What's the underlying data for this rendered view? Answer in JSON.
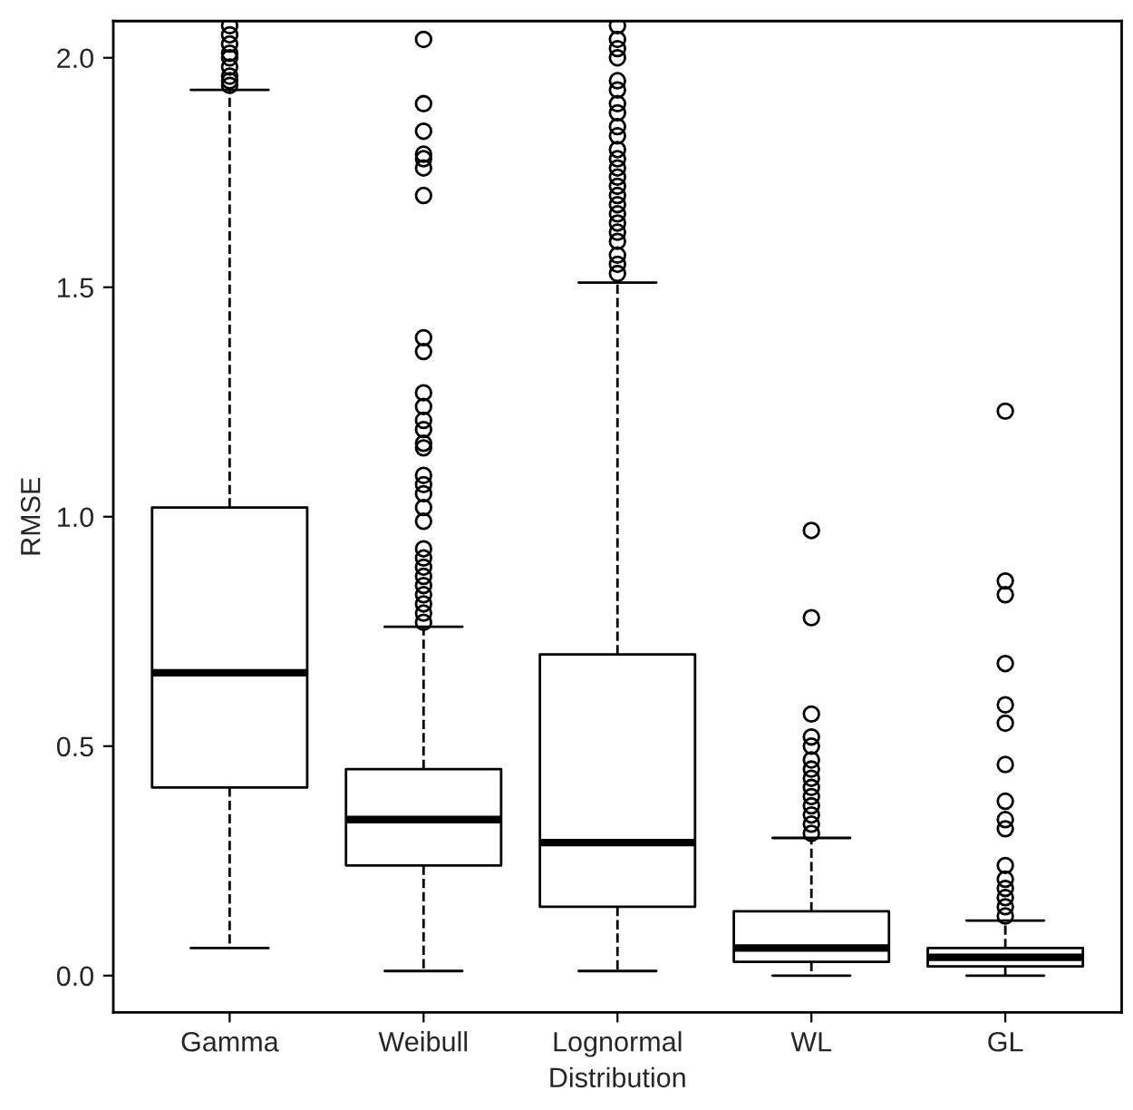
{
  "chart_data": {
    "type": "box",
    "xlabel": "Distribution",
    "ylabel": "RMSE",
    "categories": [
      "Gamma",
      "Weibull",
      "Lognormal",
      "WL",
      "GL"
    ],
    "ylim": [
      -0.08,
      2.08
    ],
    "yticks": [
      {
        "value": 0,
        "label": "0.0"
      },
      {
        "value": 0.5,
        "label": "0.5"
      },
      {
        "value": 1,
        "label": "1.0"
      },
      {
        "value": 1.5,
        "label": "1.5"
      },
      {
        "value": 2,
        "label": "2.0"
      }
    ],
    "grid": false,
    "boxes": [
      {
        "low": 0.06,
        "q1": 0.41,
        "median": 0.66,
        "q3": 1.02,
        "high": 1.93,
        "outliers": [
          1.94,
          1.95,
          1.96,
          1.98,
          2.0,
          2.01,
          2.03,
          2.05,
          2.07
        ]
      },
      {
        "low": 0.01,
        "q1": 0.24,
        "median": 0.34,
        "q3": 0.45,
        "high": 0.76,
        "outliers": [
          0.77,
          0.79,
          0.81,
          0.83,
          0.85,
          0.87,
          0.89,
          0.91,
          0.93,
          0.99,
          1.02,
          1.05,
          1.07,
          1.09,
          1.15,
          1.16,
          1.19,
          1.21,
          1.24,
          1.27,
          1.36,
          1.39,
          1.7,
          1.76,
          1.78,
          1.79,
          1.84,
          1.9,
          2.04
        ]
      },
      {
        "low": 0.01,
        "q1": 0.15,
        "median": 0.29,
        "q3": 0.7,
        "high": 1.51,
        "outliers": [
          1.53,
          1.55,
          1.57,
          1.6,
          1.62,
          1.64,
          1.66,
          1.68,
          1.7,
          1.72,
          1.74,
          1.76,
          1.78,
          1.8,
          1.83,
          1.85,
          1.88,
          1.9,
          1.93,
          1.95,
          2.0,
          2.02,
          2.04,
          2.07
        ]
      },
      {
        "low": 0.0,
        "q1": 0.03,
        "median": 0.06,
        "q3": 0.14,
        "high": 0.3,
        "outliers": [
          0.31,
          0.33,
          0.35,
          0.37,
          0.39,
          0.41,
          0.43,
          0.45,
          0.47,
          0.5,
          0.52,
          0.57,
          0.78,
          0.97
        ]
      },
      {
        "low": 0.0,
        "q1": 0.02,
        "median": 0.04,
        "q3": 0.06,
        "high": 0.12,
        "outliers": [
          0.13,
          0.15,
          0.17,
          0.19,
          0.21,
          0.24,
          0.32,
          0.34,
          0.38,
          0.46,
          0.55,
          0.59,
          0.68,
          0.83,
          0.86,
          1.23
        ]
      }
    ]
  }
}
